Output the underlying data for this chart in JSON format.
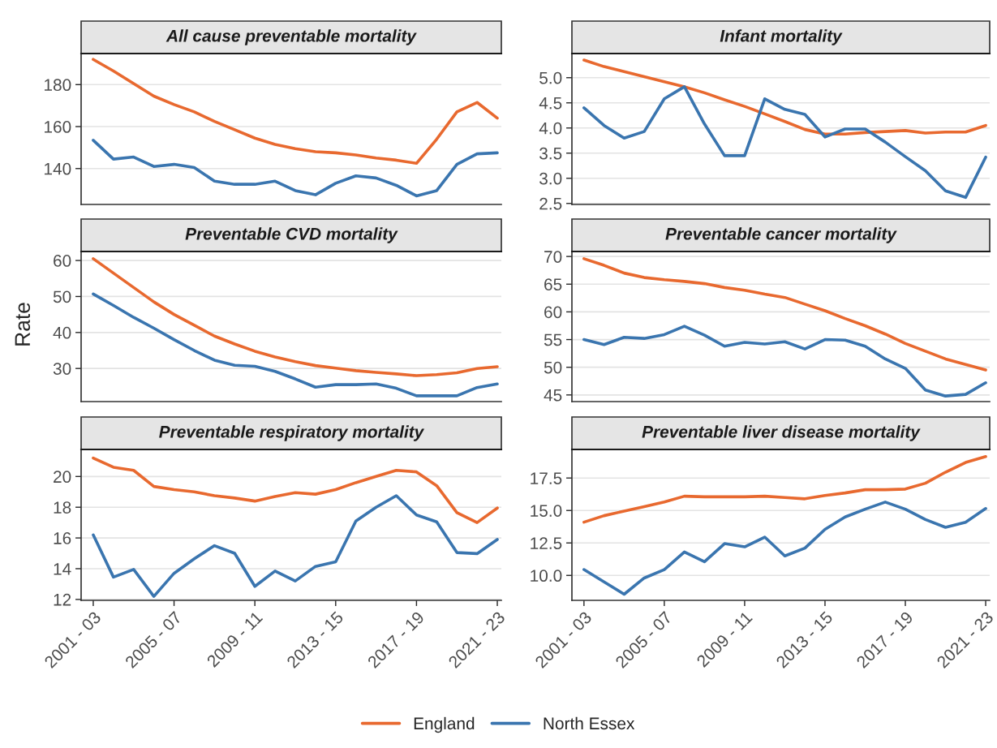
{
  "chart_data": [
    {
      "type": "line",
      "title": "All cause preventable mortality",
      "ylabel": "Rate",
      "categories": [
        "2001 - 03",
        null,
        null,
        null,
        "2005 - 07",
        null,
        null,
        null,
        "2009 - 11",
        null,
        null,
        null,
        "2013 - 15",
        null,
        null,
        null,
        "2017 - 19",
        null,
        null,
        null,
        "2021 - 23"
      ],
      "ylim": [
        122.9,
        194.8
      ],
      "yticks": [
        140,
        160,
        180
      ],
      "grid": "y",
      "tick_labels": "y",
      "legend": "bottom",
      "series": [
        {
          "name": "England",
          "color": "#e8692f",
          "values": [
            192,
            186.5,
            180.5,
            174.5,
            170.5,
            167,
            162.5,
            158.5,
            154.5,
            151.5,
            149.5,
            148,
            147.5,
            146.5,
            145,
            144,
            142.5,
            154,
            167,
            171.5,
            164
          ]
        },
        {
          "name": "North Essex",
          "color": "#3a75af",
          "values": [
            153.5,
            144.5,
            145.5,
            141,
            142,
            140.5,
            134,
            132.5,
            132.5,
            134,
            129.5,
            127.5,
            133,
            136.5,
            135.5,
            132,
            127,
            129.5,
            142,
            147,
            147.5
          ]
        }
      ]
    },
    {
      "type": "line",
      "title": "Infant mortality",
      "categories": [
        "2001 - 03",
        null,
        null,
        null,
        "2005 - 07",
        null,
        null,
        null,
        "2009 - 11",
        null,
        null,
        null,
        "2013 - 15",
        null,
        null,
        null,
        "2017 - 19",
        null,
        null,
        null,
        "2021 - 23"
      ],
      "ylim": [
        2.48,
        5.48
      ],
      "yticks": [
        {
          "value": 2.5,
          "label": "2.5"
        },
        {
          "value": 3,
          "label": "3.0"
        },
        {
          "value": 3.5,
          "label": "3.5"
        },
        {
          "value": 4,
          "label": "4.0"
        },
        {
          "value": 4.5,
          "label": "4.5"
        },
        {
          "value": 5,
          "label": "5.0"
        }
      ],
      "grid": "y",
      "tick_labels": "y",
      "legend": "bottom",
      "series": [
        {
          "name": "England",
          "color": "#e8692f",
          "values": [
            5.35,
            5.22,
            5.12,
            5.02,
            4.92,
            4.82,
            4.7,
            4.56,
            4.43,
            4.28,
            4.13,
            3.97,
            3.88,
            3.88,
            3.91,
            3.93,
            3.95,
            3.9,
            3.92,
            3.92,
            4.05
          ]
        },
        {
          "name": "North Essex",
          "color": "#3a75af",
          "values": [
            4.4,
            4.05,
            3.8,
            3.93,
            4.58,
            4.82,
            4.08,
            3.45,
            3.45,
            4.58,
            4.37,
            4.27,
            3.82,
            3.98,
            3.98,
            3.72,
            3.43,
            3.15,
            2.75,
            2.62,
            3.42
          ]
        }
      ]
    },
    {
      "type": "line",
      "title": "Preventable CVD mortality",
      "categories": [
        "2001 - 03",
        null,
        null,
        null,
        "2005 - 07",
        null,
        null,
        null,
        "2009 - 11",
        null,
        null,
        null,
        "2013 - 15",
        null,
        null,
        null,
        "2017 - 19",
        null,
        null,
        null,
        "2021 - 23"
      ],
      "ylim": [
        20.8,
        62.5
      ],
      "yticks": [
        30,
        40,
        50,
        60
      ],
      "grid": "y",
      "tick_labels": "y",
      "legend": "bottom",
      "series": [
        {
          "name": "England",
          "color": "#e8692f",
          "values": [
            60.5,
            56.5,
            52.5,
            48.5,
            45,
            42,
            39,
            36.8,
            34.8,
            33.2,
            31.9,
            30.8,
            30.1,
            29.4,
            28.9,
            28.5,
            28,
            28.3,
            28.8,
            30,
            30.5
          ]
        },
        {
          "name": "North Essex",
          "color": "#3a75af",
          "values": [
            50.7,
            47.5,
            44.2,
            41.2,
            38,
            35,
            32.3,
            30.9,
            30.6,
            29.2,
            27.1,
            24.8,
            25.5,
            25.5,
            25.7,
            24.5,
            22.4,
            22.4,
            22.4,
            24.7,
            25.7
          ]
        }
      ]
    },
    {
      "type": "line",
      "title": "Preventable cancer mortality",
      "categories": [
        "2001 - 03",
        null,
        null,
        null,
        "2005 - 07",
        null,
        null,
        null,
        "2009 - 11",
        null,
        null,
        null,
        "2013 - 15",
        null,
        null,
        null,
        "2017 - 19",
        null,
        null,
        null,
        "2021 - 23"
      ],
      "ylim": [
        43.8,
        70.9
      ],
      "yticks": [
        45,
        50,
        55,
        60,
        65,
        70
      ],
      "grid": "y",
      "tick_labels": "y",
      "legend": "bottom",
      "series": [
        {
          "name": "England",
          "color": "#e8692f",
          "values": [
            69.6,
            68.4,
            67,
            66.2,
            65.8,
            65.5,
            65.1,
            64.4,
            63.9,
            63.2,
            62.6,
            61.4,
            60.2,
            58.8,
            57.5,
            56,
            54.3,
            52.9,
            51.5,
            50.5,
            49.5
          ]
        },
        {
          "name": "North Essex",
          "color": "#3a75af",
          "values": [
            55,
            54.1,
            55.4,
            55.2,
            55.9,
            57.4,
            55.8,
            53.8,
            54.5,
            54.2,
            54.6,
            53.3,
            55,
            54.9,
            53.8,
            51.5,
            49.8,
            45.9,
            44.8,
            45.1,
            47.2
          ]
        }
      ]
    },
    {
      "type": "line",
      "title": "Preventable respiratory mortality",
      "categories": [
        "2001 - 03",
        null,
        null,
        null,
        "2005 - 07",
        null,
        null,
        null,
        "2009 - 11",
        null,
        null,
        null,
        "2013 - 15",
        null,
        null,
        null,
        "2017 - 19",
        null,
        null,
        null,
        "2021 - 23"
      ],
      "ylim": [
        11.94,
        21.76
      ],
      "yticks": [
        12,
        14,
        16,
        18,
        20
      ],
      "grid": "y",
      "legend": "bottom",
      "series": [
        {
          "name": "England",
          "color": "#e8692f",
          "values": [
            21.2,
            20.6,
            20.4,
            19.35,
            19.15,
            19,
            18.75,
            18.6,
            18.4,
            18.7,
            18.95,
            18.85,
            19.15,
            19.6,
            20,
            20.4,
            20.3,
            19.4,
            17.65,
            17,
            17.95
          ]
        },
        {
          "name": "North Essex",
          "color": "#3a75af",
          "values": [
            16.2,
            13.45,
            13.95,
            12.2,
            13.7,
            14.65,
            15.5,
            15,
            12.85,
            13.85,
            13.2,
            14.15,
            14.45,
            17.1,
            18,
            18.75,
            17.5,
            17.05,
            15.05,
            14.98,
            15.9
          ]
        }
      ]
    },
    {
      "type": "line",
      "title": "Preventable liver disease mortality",
      "categories": [
        "2001 - 03",
        null,
        null,
        null,
        "2005 - 07",
        null,
        null,
        null,
        "2009 - 11",
        null,
        null,
        null,
        "2013 - 15",
        null,
        null,
        null,
        "2017 - 19",
        null,
        null,
        null,
        "2021 - 23"
      ],
      "ylim": [
        8.08,
        19.7
      ],
      "yticks": [
        {
          "value": 10,
          "label": "10.0"
        },
        {
          "value": 12.5,
          "label": "12.5"
        },
        {
          "value": 15,
          "label": "15.0"
        },
        {
          "value": 17.5,
          "label": "17.5"
        }
      ],
      "grid": "y",
      "legend": "bottom",
      "series": [
        {
          "name": "England",
          "color": "#e8692f",
          "values": [
            14.1,
            14.6,
            14.95,
            15.3,
            15.65,
            16.1,
            16.05,
            16.05,
            16.05,
            16.1,
            16.0,
            15.9,
            16.15,
            16.35,
            16.6,
            16.6,
            16.65,
            17.1,
            17.95,
            18.7,
            19.15
          ]
        },
        {
          "name": "North Essex",
          "color": "#3a75af",
          "values": [
            10.45,
            9.5,
            8.55,
            9.8,
            10.45,
            11.8,
            11.05,
            12.45,
            12.2,
            12.95,
            11.5,
            12.1,
            13.55,
            14.5,
            15.1,
            15.65,
            15.1,
            14.3,
            13.7,
            14.1,
            15.15
          ]
        }
      ]
    }
  ]
}
